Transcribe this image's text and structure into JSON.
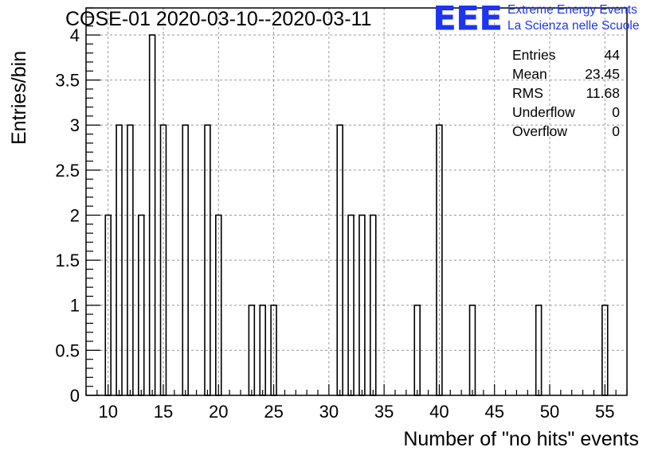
{
  "header": {
    "title": "COSE-01 2020-03-10--2020-03-11",
    "logo_mark": "EEE",
    "logo_line1": "Extreme Energy Events",
    "logo_line2": "La Scienza nelle Scuole"
  },
  "stats_box": {
    "rows": [
      {
        "label": "Entries",
        "value": "44"
      },
      {
        "label": "Mean",
        "value": "23.45"
      },
      {
        "label": "RMS",
        "value": "11.68"
      },
      {
        "label": "Underflow",
        "value": "0"
      },
      {
        "label": "Overflow",
        "value": "0"
      }
    ]
  },
  "colors": {
    "logo": "#1e35f0",
    "bars": "#000000",
    "grid": "#999999"
  },
  "chart_data": {
    "type": "bar",
    "title": "COSE-01 2020-03-10--2020-03-11",
    "xlabel": "Number of \"no hits\" events",
    "ylabel": "Entries/bin",
    "xlim": [
      8,
      57
    ],
    "ylim": [
      0,
      4.3
    ],
    "bin_width": 0.5,
    "grid": true,
    "x_ticks": [
      "10",
      "15",
      "20",
      "25",
      "30",
      "35",
      "40",
      "45",
      "50",
      "55"
    ],
    "y_ticks": [
      "0",
      "0.5",
      "1",
      "1.5",
      "2",
      "2.5",
      "3",
      "3.5",
      "4"
    ],
    "x": [
      10,
      11,
      12,
      13,
      14,
      15,
      17,
      19,
      20,
      23,
      24,
      25,
      31,
      32,
      33,
      34,
      38,
      40,
      43,
      49,
      55
    ],
    "values": [
      2,
      3,
      3,
      2,
      4,
      3,
      3,
      3,
      2,
      1,
      1,
      1,
      3,
      2,
      2,
      2,
      1,
      3,
      1,
      1,
      1
    ]
  }
}
